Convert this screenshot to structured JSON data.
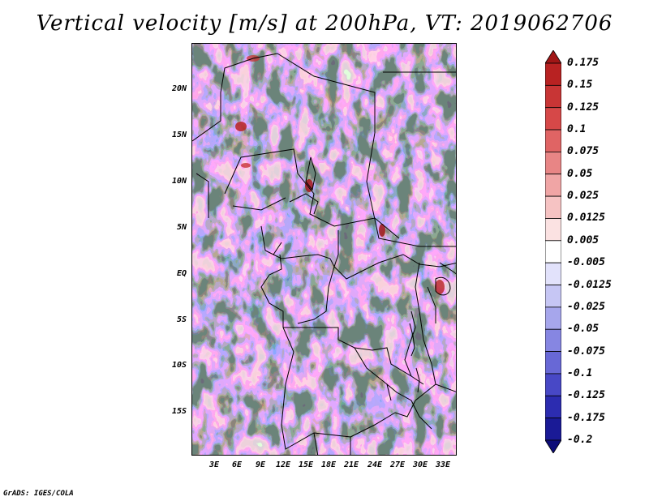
{
  "title": "Vertical velocity [m/s] at 200hPa, VT: 2019062706",
  "lat_labels": [
    "20N",
    "15N",
    "10N",
    "5N",
    "EQ",
    "5S",
    "10S",
    "15S"
  ],
  "lon_labels": [
    "3E",
    "6E",
    "9E",
    "12E",
    "15E",
    "18E",
    "21E",
    "24E",
    "27E",
    "30E",
    "33E"
  ],
  "colorbar": {
    "labels": [
      "0.175",
      "0.15",
      "0.125",
      "0.1",
      "0.075",
      "0.05",
      "0.025",
      "0.0125",
      "0.005",
      "-0.005",
      "-0.0125",
      "-0.025",
      "-0.05",
      "-0.075",
      "-0.1",
      "-0.125",
      "-0.175",
      "-0.2"
    ],
    "colors": [
      "#a01616",
      "#b82222",
      "#c83535",
      "#d64848",
      "#e06464",
      "#e88585",
      "#f0a5a5",
      "#f6c3c3",
      "#fbe2e2",
      "#ffffff",
      "#e2e2fb",
      "#c6c6f4",
      "#a6a6ec",
      "#8686e2",
      "#6868d6",
      "#4848c6",
      "#2c2cb0",
      "#1a1a96",
      "#0c0c78"
    ]
  },
  "field_colors": {
    "positive": "#e88585",
    "negative": "#6e6ed8",
    "neutral": "#ffffff"
  },
  "credit": "GrADS: IGES/COLA"
}
